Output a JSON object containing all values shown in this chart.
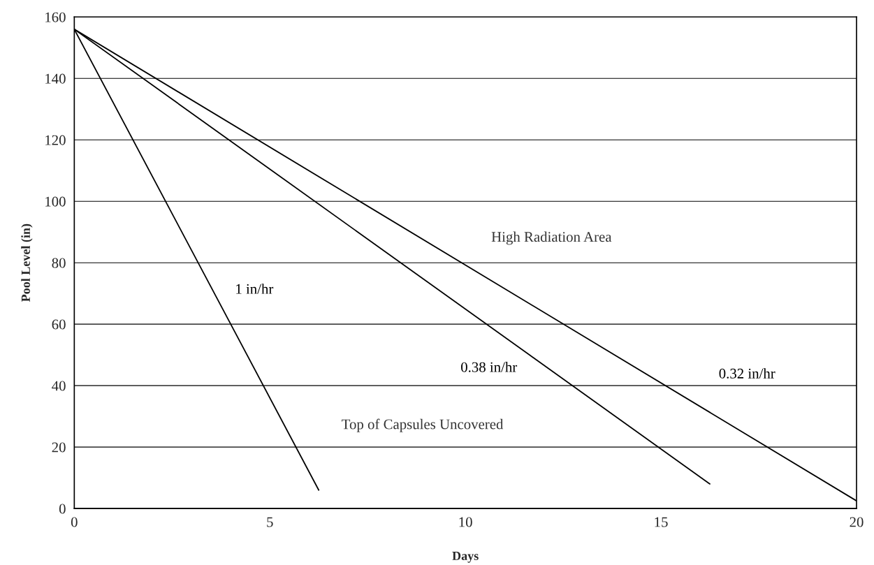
{
  "chart_data": {
    "type": "line",
    "xlabel": "Days",
    "ylabel": "Pool Level (in)",
    "xlim": [
      0,
      20
    ],
    "xticks": [
      0,
      5,
      10,
      15,
      20
    ],
    "ylim": [
      0,
      160
    ],
    "yticks": [
      0,
      20,
      40,
      60,
      80,
      100,
      120,
      140,
      160
    ],
    "grid": "y",
    "marker": "none",
    "line_style": "solid",
    "series": [
      {
        "name": "1 in/hr",
        "color": "#000000",
        "x": [
          0,
          6.25
        ],
        "values": [
          156,
          6
        ]
      },
      {
        "name": "0.38 in/hr",
        "color": "#000000",
        "x": [
          0,
          16.25
        ],
        "values": [
          156,
          8
        ]
      },
      {
        "name": "0.32 in/hr",
        "color": "#000000",
        "x": [
          0,
          20
        ],
        "values": [
          156,
          2.5
        ]
      }
    ],
    "annotations": [
      "High Radiation Area",
      "Top of Capsules Uncovered"
    ]
  }
}
